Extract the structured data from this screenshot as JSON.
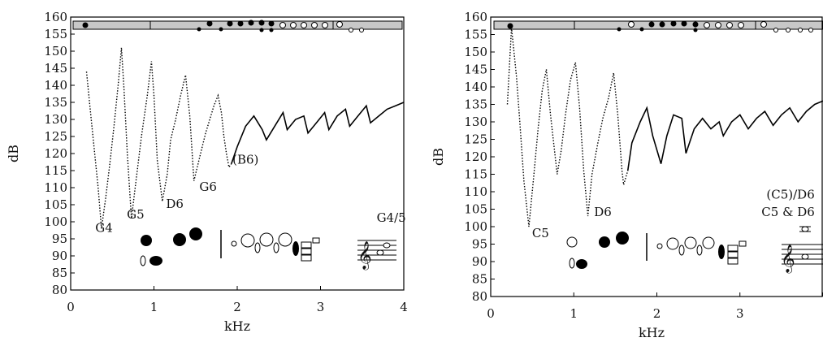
{
  "chart_data": [
    {
      "type": "line",
      "xlabel": "kHz",
      "ylabel": "dB",
      "xlim": [
        0,
        4
      ],
      "ylim": [
        80,
        160
      ],
      "xticks": [
        "0",
        "1",
        "2",
        "3",
        "4"
      ],
      "yticks": [
        "80",
        "85",
        "90",
        "95",
        "100",
        "105",
        "110",
        "115",
        "120",
        "125",
        "130",
        "135",
        "140",
        "145",
        "150",
        "155",
        "160"
      ],
      "grid": false,
      "annotations": [
        {
          "text": "G4",
          "x": 0.4,
          "y": 97
        },
        {
          "text": "G5",
          "x": 0.78,
          "y": 101
        },
        {
          "text": "D6",
          "x": 1.25,
          "y": 104
        },
        {
          "text": "G6",
          "x": 1.65,
          "y": 109
        },
        {
          "text": "(B6)",
          "x": 2.1,
          "y": 117
        },
        {
          "text": "G4/5",
          "x": 3.85,
          "y": 100
        }
      ],
      "series": [
        {
          "style": "dotted",
          "x": [
            0.19,
            0.23,
            0.28,
            0.33,
            0.37,
            0.42,
            0.47,
            0.52,
            0.57,
            0.61,
            0.64,
            0.68,
            0.73,
            0.78,
            0.85,
            0.92,
            0.97,
            1.0,
            1.04,
            1.1,
            1.16,
            1.2,
            1.26,
            1.32,
            1.38,
            1.43,
            1.48,
            1.52,
            1.57,
            1.62,
            1.67,
            1.72,
            1.77,
            1.81,
            1.84,
            1.87,
            1.9,
            1.93
          ],
          "y": [
            144,
            134,
            122,
            110,
            98,
            107,
            117,
            128,
            140,
            151,
            139,
            120,
            101,
            111,
            125,
            137,
            147,
            137,
            118,
            106,
            114,
            124,
            130,
            137,
            143,
            131,
            112,
            116,
            121,
            126,
            130,
            134,
            137,
            132,
            125,
            120,
            116,
            117
          ]
        },
        {
          "style": "solid",
          "x": [
            1.93,
            2.0,
            2.1,
            2.2,
            2.3,
            2.35,
            2.45,
            2.55,
            2.6,
            2.7,
            2.8,
            2.85,
            2.95,
            3.05,
            3.1,
            3.2,
            3.3,
            3.35,
            3.45,
            3.55,
            3.6,
            3.7,
            3.8,
            3.9,
            4.0
          ],
          "y": [
            117,
            122,
            128,
            131,
            127,
            124,
            128,
            132,
            127,
            130,
            131,
            126,
            129,
            132,
            127,
            131,
            133,
            128,
            131,
            134,
            129,
            131,
            133,
            134,
            135
          ]
        }
      ]
    },
    {
      "type": "line",
      "xlabel": "kHz",
      "ylabel": "dB",
      "xlim": [
        0,
        4
      ],
      "ylim": [
        80,
        160
      ],
      "xticks": [
        "0",
        "1",
        "2",
        "3",
        "4"
      ],
      "yticks": [
        "80",
        "85",
        "90",
        "95",
        "100",
        "105",
        "110",
        "115",
        "120",
        "125",
        "130",
        "135",
        "140",
        "145",
        "150",
        "155",
        "160"
      ],
      "grid": false,
      "annotations": [
        {
          "text": "C5",
          "x": 0.6,
          "y": 97
        },
        {
          "text": "D6",
          "x": 1.35,
          "y": 103
        },
        {
          "text": "(C5)/D6",
          "x": 3.9,
          "y": 108
        },
        {
          "text": "C5 & D6",
          "x": 3.9,
          "y": 103
        }
      ],
      "series": [
        {
          "style": "dotted",
          "x": [
            0.2,
            0.25,
            0.31,
            0.35,
            0.4,
            0.46,
            0.52,
            0.57,
            0.62,
            0.67,
            0.72,
            0.8,
            0.85,
            0.9,
            0.96,
            1.02,
            1.07,
            1.12,
            1.17,
            1.22,
            1.29,
            1.35,
            1.42,
            1.48,
            1.53,
            1.58,
            1.6,
            1.65
          ],
          "y": [
            135,
            157,
            143,
            130,
            113,
            100,
            115,
            128,
            139,
            145,
            132,
            115,
            122,
            132,
            142,
            147,
            134,
            116,
            103,
            115,
            124,
            131,
            137,
            144,
            132,
            116,
            112,
            116
          ]
        },
        {
          "style": "solid",
          "x": [
            1.65,
            1.7,
            1.8,
            1.88,
            1.95,
            2.05,
            2.12,
            2.2,
            2.3,
            2.35,
            2.45,
            2.55,
            2.65,
            2.75,
            2.8,
            2.9,
            3.0,
            3.1,
            3.2,
            3.3,
            3.4,
            3.5,
            3.6,
            3.7,
            3.8,
            3.9,
            4.0
          ],
          "y": [
            116,
            124,
            130,
            134,
            126,
            118,
            126,
            132,
            131,
            121,
            128,
            131,
            128,
            130,
            126,
            130,
            132,
            128,
            131,
            133,
            129,
            132,
            134,
            130,
            133,
            135,
            136
          ]
        }
      ]
    }
  ]
}
